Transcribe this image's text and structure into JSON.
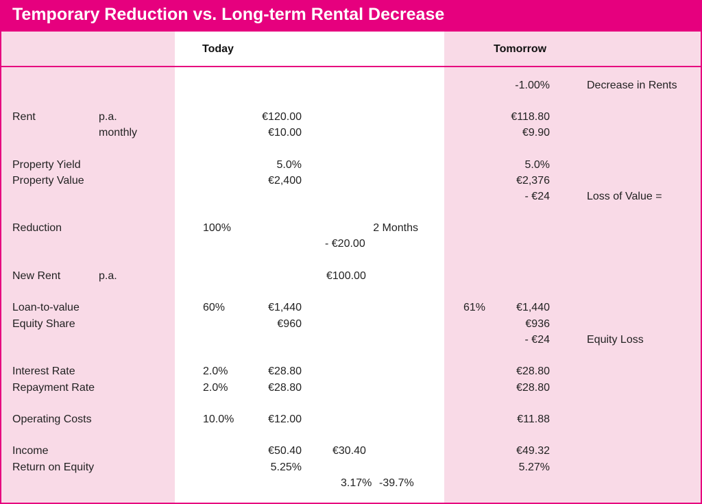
{
  "title": "Temporary Reduction vs. Long-term Rental Decrease",
  "headers": {
    "today": "Today",
    "tomorrow": "Tomorrow"
  },
  "labels": {
    "rent": "Rent",
    "pa": "p.a.",
    "monthly": "monthly",
    "property_yield": "Property Yield",
    "property_value": "Property Value",
    "reduction": "Reduction",
    "new_rent": "New Rent",
    "new_rent_pa": "p.a.",
    "loan_to_value": "Loan-to-value",
    "equity_share": "Equity Share",
    "interest_rate": "Interest Rate",
    "repayment_rate": "Repayment Rate",
    "operating_costs": "Operating Costs",
    "income": "Income",
    "return_on_equity": "Return on Equity"
  },
  "today": {
    "rent_pa": "€120.00",
    "rent_monthly": "€10.00",
    "property_yield": "5.0%",
    "property_value": "€2,400",
    "reduction_pct": "100%",
    "ltv_pct": "60%",
    "ltv_value": "€1,440",
    "equity_share": "€960",
    "interest_pct": "2.0%",
    "interest_value": "€28.80",
    "repayment_pct": "2.0%",
    "repayment_value": "€28.80",
    "opcost_pct": "10.0%",
    "opcost_value": "€12.00",
    "income": "€50.40",
    "return_on_equity": "5.25%"
  },
  "scenario": {
    "months": "2 Months",
    "reduction_amount": "- €20.00",
    "new_rent": "€100.00",
    "income": "€30.40",
    "roe": "3.17%",
    "roe_change": "-39.7%"
  },
  "tomorrow": {
    "decrease_pct": "-1.00%",
    "decrease_label": "Decrease in Rents",
    "rent_pa": "€118.80",
    "rent_monthly": "€9.90",
    "property_yield": "5.0%",
    "property_value": "€2,376",
    "value_loss": "-  €24",
    "value_loss_label": "Loss of Value =",
    "ltv_pct": "61%",
    "ltv_value": "€1,440",
    "equity_share": "€936",
    "equity_loss": "- €24",
    "equity_loss_label": "Equity Loss",
    "interest_value": "€28.80",
    "repayment_value": "€28.80",
    "opcost_value": "€11.88",
    "income": "€49.32",
    "return_on_equity": "5.27%"
  }
}
